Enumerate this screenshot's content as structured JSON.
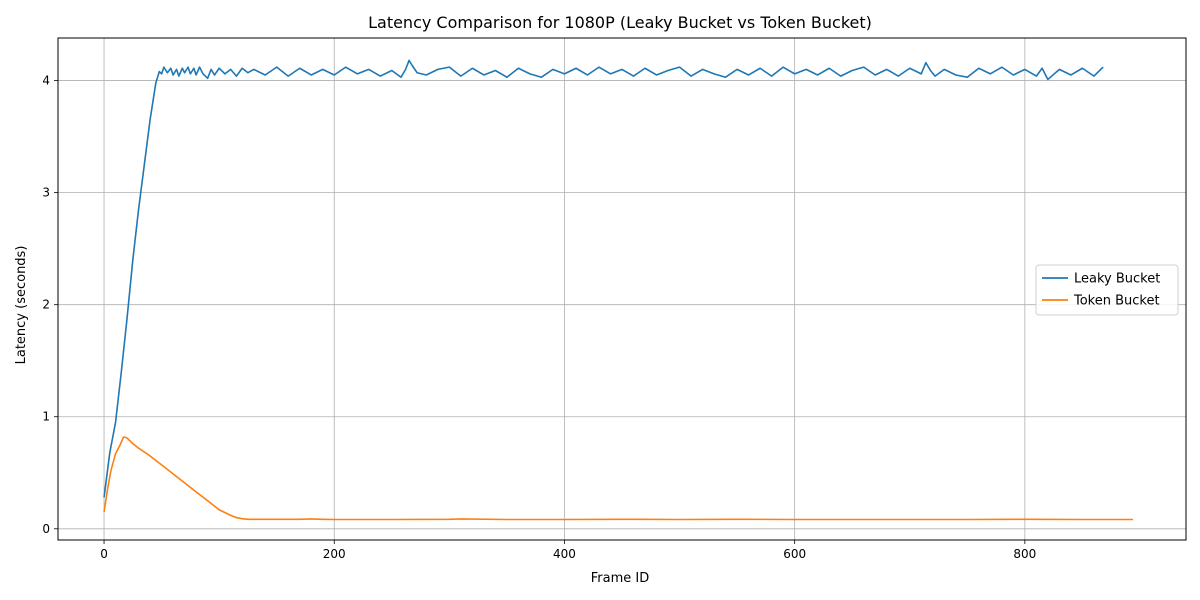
{
  "chart_data": {
    "type": "line",
    "title": "Latency Comparison for 1080P (Leaky Bucket vs Token Bucket)",
    "xlabel": "Frame ID",
    "ylabel": "Latency (seconds)",
    "xlim": [
      -40,
      940
    ],
    "ylim": [
      -0.1,
      4.38
    ],
    "xticks": [
      0,
      200,
      400,
      600,
      800
    ],
    "yticks": [
      0,
      1,
      2,
      3,
      4
    ],
    "grid": true,
    "legend_position": "center-right",
    "series": [
      {
        "name": "Leaky Bucket",
        "color": "#1f77b4",
        "x": [
          0,
          5,
          10,
          15,
          20,
          25,
          30,
          35,
          40,
          45,
          48,
          50,
          52,
          55,
          58,
          60,
          63,
          65,
          68,
          70,
          73,
          75,
          78,
          80,
          83,
          86,
          90,
          93,
          96,
          100,
          105,
          110,
          115,
          120,
          125,
          130,
          140,
          150,
          160,
          170,
          180,
          190,
          200,
          210,
          220,
          230,
          240,
          250,
          258,
          262,
          265,
          268,
          272,
          280,
          290,
          300,
          310,
          320,
          330,
          340,
          350,
          360,
          370,
          380,
          390,
          400,
          410,
          420,
          430,
          440,
          450,
          460,
          470,
          480,
          490,
          500,
          510,
          520,
          530,
          540,
          550,
          560,
          570,
          580,
          590,
          600,
          610,
          620,
          630,
          640,
          650,
          660,
          670,
          680,
          690,
          700,
          710,
          714,
          718,
          722,
          730,
          740,
          750,
          760,
          770,
          780,
          790,
          800,
          810,
          815,
          820,
          830,
          840,
          850,
          860,
          868
        ],
        "y": [
          0.28,
          0.68,
          0.95,
          1.4,
          1.88,
          2.4,
          2.85,
          3.25,
          3.65,
          3.98,
          4.08,
          4.06,
          4.12,
          4.07,
          4.11,
          4.05,
          4.1,
          4.04,
          4.11,
          4.07,
          4.12,
          4.06,
          4.11,
          4.05,
          4.12,
          4.06,
          4.02,
          4.1,
          4.05,
          4.11,
          4.06,
          4.1,
          4.04,
          4.11,
          4.07,
          4.1,
          4.05,
          4.12,
          4.04,
          4.11,
          4.05,
          4.1,
          4.05,
          4.12,
          4.06,
          4.1,
          4.04,
          4.09,
          4.03,
          4.1,
          4.18,
          4.13,
          4.07,
          4.05,
          4.1,
          4.12,
          4.04,
          4.11,
          4.05,
          4.09,
          4.03,
          4.11,
          4.06,
          4.03,
          4.1,
          4.06,
          4.11,
          4.05,
          4.12,
          4.06,
          4.1,
          4.04,
          4.11,
          4.05,
          4.09,
          4.12,
          4.04,
          4.1,
          4.06,
          4.03,
          4.1,
          4.05,
          4.11,
          4.04,
          4.12,
          4.06,
          4.1,
          4.05,
          4.11,
          4.04,
          4.09,
          4.12,
          4.05,
          4.1,
          4.04,
          4.11,
          4.06,
          4.16,
          4.09,
          4.04,
          4.1,
          4.05,
          4.03,
          4.11,
          4.06,
          4.12,
          4.05,
          4.1,
          4.04,
          4.11,
          4.01,
          4.1,
          4.05,
          4.11,
          4.04,
          4.12
        ]
      },
      {
        "name": "Token Bucket",
        "color": "#ff7f0e",
        "x": [
          0,
          3,
          6,
          10,
          14,
          17,
          20,
          25,
          30,
          40,
          50,
          60,
          70,
          80,
          90,
          100,
          110,
          115,
          120,
          125,
          130,
          150,
          170,
          180,
          190,
          200,
          250,
          300,
          310,
          350,
          400,
          450,
          500,
          550,
          600,
          650,
          700,
          750,
          800,
          850,
          894
        ],
        "y": [
          0.15,
          0.35,
          0.52,
          0.67,
          0.75,
          0.82,
          0.81,
          0.76,
          0.72,
          0.65,
          0.57,
          0.49,
          0.41,
          0.33,
          0.25,
          0.17,
          0.12,
          0.1,
          0.09,
          0.085,
          0.085,
          0.085,
          0.085,
          0.088,
          0.085,
          0.083,
          0.083,
          0.085,
          0.088,
          0.083,
          0.083,
          0.085,
          0.083,
          0.085,
          0.083,
          0.083,
          0.083,
          0.083,
          0.085,
          0.083,
          0.083
        ]
      }
    ]
  }
}
